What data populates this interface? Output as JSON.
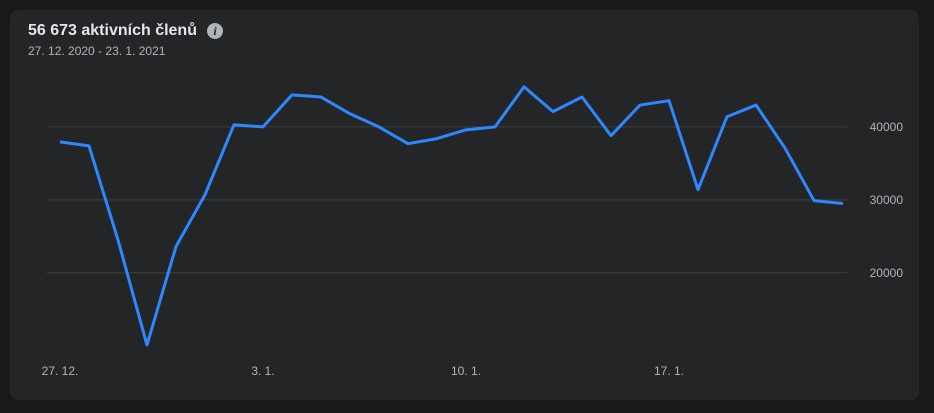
{
  "chart_data": {
    "type": "line",
    "title": "56 673 aktivních členů",
    "subtitle": "27. 12. 2020 - 23. 1. 2021",
    "categories": [
      "27. 12.",
      null,
      null,
      null,
      null,
      null,
      null,
      "3. 1.",
      null,
      null,
      null,
      null,
      null,
      null,
      "10. 1.",
      null,
      null,
      null,
      null,
      null,
      null,
      "17. 1.",
      null,
      null,
      null,
      null,
      null,
      null
    ],
    "series": [
      {
        "color": "#2d88ff",
        "values": [
          37950,
          37400,
          24500,
          10100,
          23600,
          30700,
          40300,
          40000,
          44400,
          44100,
          41800,
          40000,
          37700,
          38400,
          39600,
          40000,
          45500,
          42100,
          44100,
          38800,
          43000,
          43600,
          31400,
          41400,
          43000,
          37100,
          29900,
          29500
        ]
      }
    ],
    "ylim": [
      9000,
      50000
    ],
    "yticks": [
      20000,
      30000,
      40000
    ],
    "grid": true
  }
}
